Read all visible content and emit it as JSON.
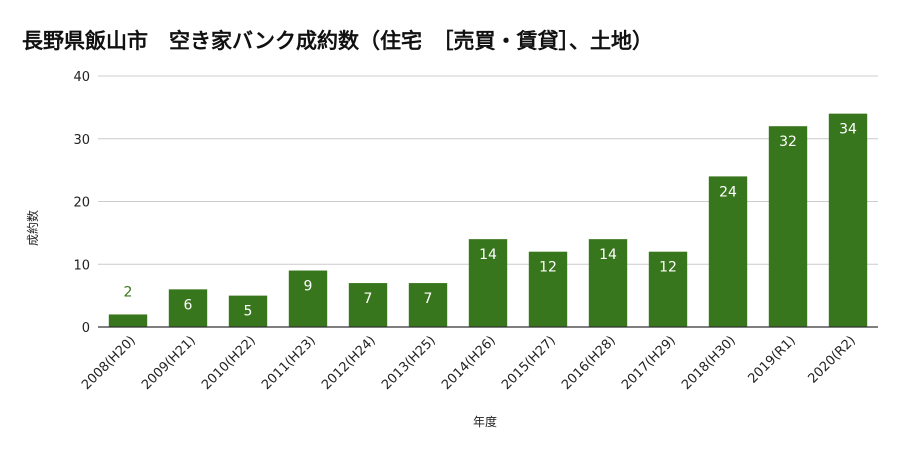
{
  "chart_data": {
    "type": "bar",
    "title": "長野県飯山市　空き家バンク成約数（住宅　［売買・賃貸］、土地）",
    "xlabel": "年度",
    "ylabel": "成約数",
    "categories": [
      "2008(H20)",
      "2009(H21)",
      "2010(H22)",
      "2011(H23)",
      "2012(H24)",
      "2013(H25)",
      "2014(H26)",
      "2015(H27)",
      "2016(H28)",
      "2017(H29)",
      "2018(H30)",
      "2019(R1)",
      "2020(R2)"
    ],
    "values": [
      2,
      6,
      5,
      9,
      7,
      7,
      14,
      12,
      14,
      12,
      24,
      32,
      34
    ],
    "ylim": [
      0,
      40
    ],
    "yticks": [
      0,
      10,
      20,
      30,
      40
    ],
    "grid": true,
    "legend": "none",
    "colors": {
      "bar": "#38761d",
      "label_inside": "#ffffff",
      "label_outside": "#38761d",
      "grid": "#cccccc",
      "axis": "#333333"
    }
  }
}
